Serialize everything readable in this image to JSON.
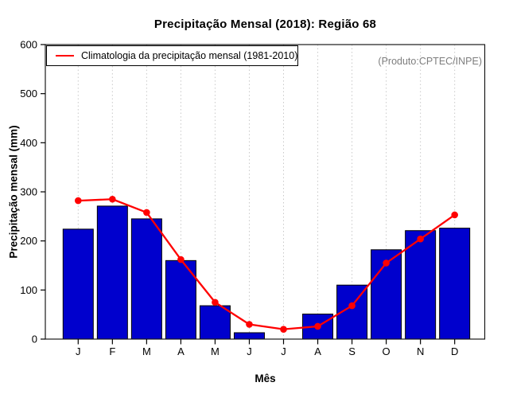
{
  "chart_data": {
    "type": "bar",
    "title": "Precipitação Mensal (2018): Região 68",
    "xlabel": "Mês",
    "ylabel": "Precipitação mensal (mm)",
    "categories": [
      "J",
      "F",
      "M",
      "A",
      "M",
      "J",
      "J",
      "A",
      "S",
      "O",
      "N",
      "D"
    ],
    "series": [
      {
        "type": "bar",
        "color": "#0000CD",
        "values": [
          224,
          271,
          245,
          160,
          68,
          13,
          0,
          51,
          110,
          182,
          221,
          226
        ]
      },
      {
        "type": "line",
        "name": "Climatologia da precipitação mensal (1981-2010)",
        "color": "#FF0000",
        "values": [
          282,
          285,
          258,
          162,
          75,
          30,
          20,
          26,
          68,
          155,
          204,
          253
        ]
      }
    ],
    "ylim": [
      0,
      600
    ],
    "yticks": [
      0,
      100,
      200,
      300,
      400,
      500,
      600
    ],
    "grid": "vertical-dotted-per-month",
    "legend": {
      "position": "top-left",
      "entries": [
        {
          "label": "Climatologia da precipitação mensal (1981-2010)",
          "color": "#FF0000"
        }
      ]
    },
    "annotation": {
      "text": "(Produto:CPTEC/INPE)",
      "color": "#7E7E7E",
      "position": "top-right"
    }
  }
}
